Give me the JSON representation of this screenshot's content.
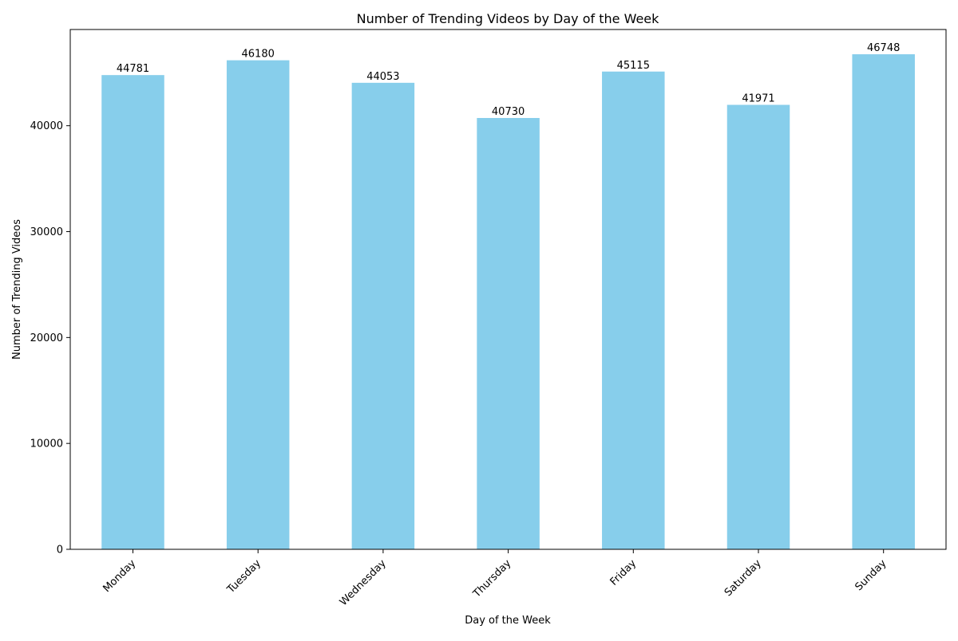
{
  "chart_data": {
    "type": "bar",
    "title": "Number of Trending Videos by Day of the Week",
    "xlabel": "Day of the Week",
    "ylabel": "Number of Trending Videos",
    "categories": [
      "Monday",
      "Tuesday",
      "Wednesday",
      "Thursday",
      "Friday",
      "Saturday",
      "Sunday"
    ],
    "values": [
      44781,
      46180,
      44053,
      40730,
      45115,
      41971,
      46748
    ],
    "value_labels": [
      "44781",
      "46180",
      "44053",
      "40730",
      "45115",
      "41971",
      "46748"
    ],
    "y_ticks": [
      0,
      10000,
      20000,
      30000,
      40000
    ],
    "y_tick_labels": [
      "0",
      "10000",
      "20000",
      "30000",
      "40000"
    ],
    "ylim": [
      0,
      49086
    ],
    "grid": false,
    "legend": "none",
    "bar_color": "#87CEEB"
  }
}
